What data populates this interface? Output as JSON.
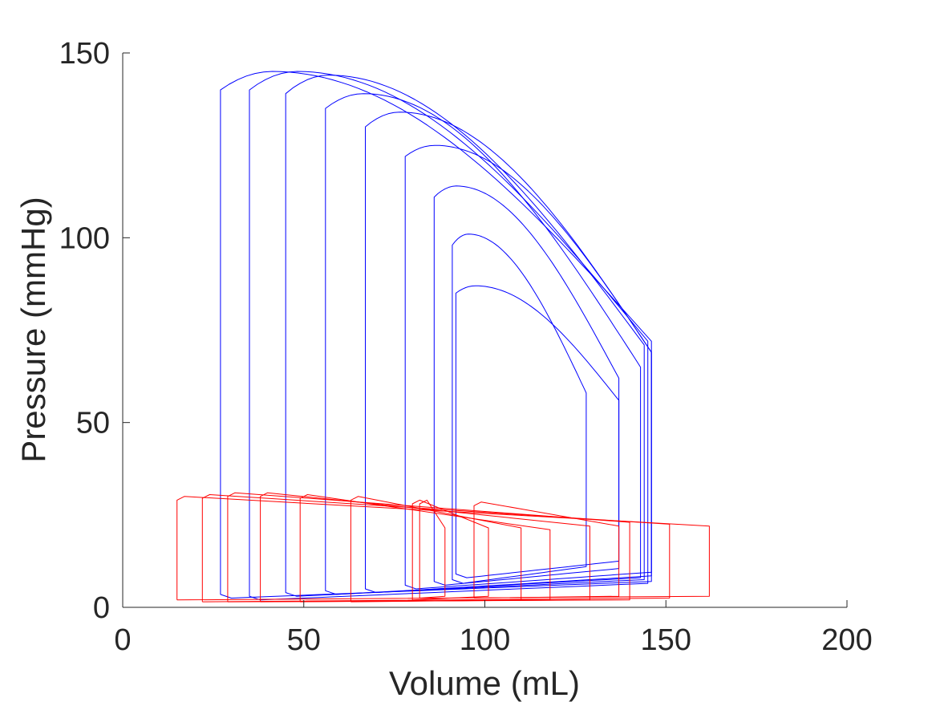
{
  "chart_data": {
    "type": "line",
    "title": "",
    "xlabel": "Volume (mL)",
    "ylabel": "Pressure (mmHg)",
    "xlim": [
      0,
      200
    ],
    "ylim": [
      0,
      150
    ],
    "xticks": [
      0,
      50,
      100,
      150,
      200
    ],
    "yticks": [
      0,
      50,
      100,
      150
    ],
    "grid": false,
    "legend": "none",
    "colors": {
      "lv": "#0000ff",
      "la": "#ff0000",
      "axis": "#262626"
    },
    "series": [
      {
        "color": "#0000ff",
        "loops": [
          {
            "ved": 146,
            "ves": 27,
            "pes": 140,
            "pmax": 145,
            "ped": 72,
            "pdias": 5.5
          },
          {
            "ved": 145,
            "ves": 35,
            "pes": 140,
            "pmax": 145,
            "ped": 72,
            "pdias": 5
          },
          {
            "ved": 144,
            "ves": 45,
            "pes": 139,
            "pmax": 144,
            "ped": 71,
            "pdias": 6
          },
          {
            "ved": 143,
            "ves": 56,
            "pes": 135,
            "pmax": 139,
            "ped": 65,
            "pdias": 6.5
          },
          {
            "ved": 146,
            "ves": 67,
            "pes": 130,
            "pmax": 134,
            "ped": 69,
            "pdias": 7
          },
          {
            "ved": 146,
            "ves": 78,
            "pes": 122,
            "pmax": 125,
            "ped": 69,
            "pdias": 8
          },
          {
            "ved": 137,
            "ves": 86,
            "pes": 111,
            "pmax": 114,
            "ped": 62,
            "pdias": 9
          },
          {
            "ved": 128,
            "ves": 91,
            "pes": 98,
            "pmax": 101,
            "ped": 58,
            "pdias": 9.5
          },
          {
            "ved": 137,
            "ves": 92,
            "pes": 85,
            "pmax": 87,
            "ped": 56,
            "pdias": 11
          }
        ]
      },
      {
        "color": "#ff0000",
        "loops": [
          {
            "vmax": 162,
            "vmin": 15,
            "pa": 30,
            "pb": 22,
            "pc": 3,
            "pd": 2
          },
          {
            "vmax": 151,
            "vmin": 22,
            "pa": 30.5,
            "pb": 22.5,
            "pc": 2.5,
            "pd": 1.5
          },
          {
            "vmax": 140,
            "vmin": 29,
            "pa": 31,
            "pb": 23,
            "pc": 2,
            "pd": 1.5
          },
          {
            "vmax": 129,
            "vmin": 38,
            "pa": 31,
            "pb": 22,
            "pc": 2,
            "pd": 1.5
          },
          {
            "vmax": 118,
            "vmin": 49,
            "pa": 30.5,
            "pb": 21,
            "pc": 2,
            "pd": 1.5
          },
          {
            "vmax": 110,
            "vmin": 63,
            "pa": 30,
            "pb": 21.5,
            "pc": 2,
            "pd": 1.5
          },
          {
            "vmax": 101,
            "vmin": 80,
            "pa": 29,
            "pb": 21.5,
            "pc": 3,
            "pd": 2
          },
          {
            "vmax": 89,
            "vmin": 82,
            "pa": 29,
            "pb": 21.5,
            "pc": 3,
            "pd": 2.5
          },
          {
            "vmax": 137,
            "vmin": 97,
            "pa": 28.5,
            "pb": 22,
            "pc": 3,
            "pd": 2.5
          }
        ]
      }
    ]
  }
}
